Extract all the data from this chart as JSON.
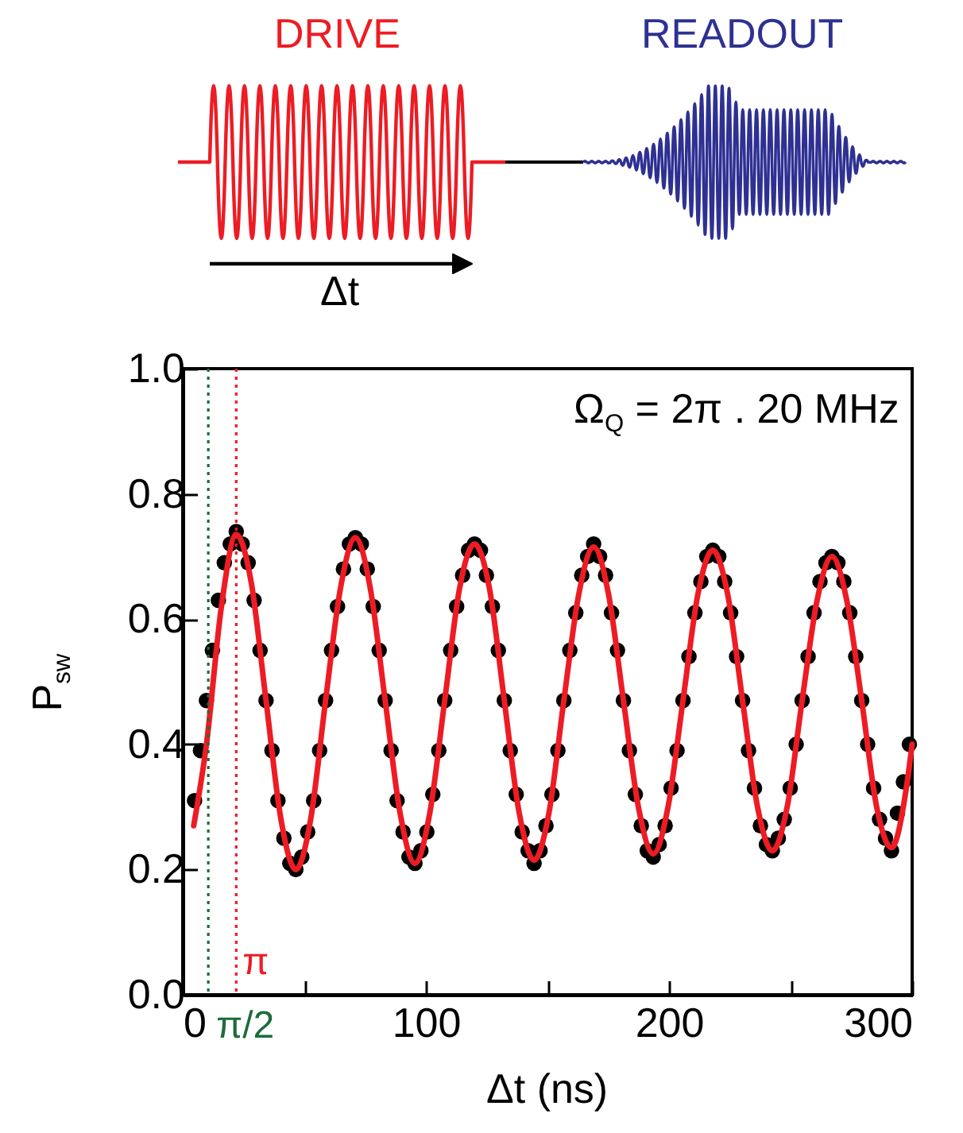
{
  "chart_data": {
    "type": "scatter",
    "xlabel": "Δt (ns)",
    "ylabel": "P$_{sw}$",
    "annotations": [
      "DRIVE",
      "READOUT",
      "Δt",
      "Ω$_{Q}$ = 2π . 20 MHz"
    ],
    "xlim": [
      0,
      300
    ],
    "xticks": [
      0,
      {
        "value": 50,
        "label": null
      },
      100,
      {
        "value": 150,
        "label": null
      },
      200,
      {
        "value": 250,
        "label": null
      },
      300
    ],
    "ylim": [
      0,
      1
    ],
    "yticks": [
      {
        "value": 0,
        "label": "0.0"
      },
      {
        "value": 0.2,
        "label": "0.2"
      },
      {
        "value": 0.4,
        "label": "0.4"
      },
      {
        "value": 0.6,
        "label": "0.6"
      },
      {
        "value": 0.8,
        "label": "0.8"
      },
      {
        "value": 1,
        "label": "1.0"
      }
    ],
    "ref_lines": [
      {
        "axis": "x",
        "value": 10.5,
        "label": "π/2",
        "color": "#1e6b3c",
        "line_style": "dotted"
      },
      {
        "axis": "x",
        "value": 22,
        "label": "π",
        "color": "#ed1c24",
        "line_style": "dotted"
      }
    ],
    "series": [
      {
        "color": "#000000",
        "marker": "circle",
        "x": [
          4.85,
          7.3,
          9.75,
          12.2,
          14.65,
          17.1,
          19.55,
          22,
          24.45,
          26.9,
          29.35,
          31.8,
          34.25,
          36.7,
          39.15,
          41.6,
          44.05,
          46.5,
          48.95,
          51.4,
          53.85,
          56.3,
          58.75,
          61.2,
          63.65,
          66.1,
          68.55,
          71,
          73.45,
          75.9,
          78.35,
          80.8,
          83.25,
          85.7,
          88.15,
          90.6,
          93.05,
          95.5,
          97.95,
          100.4,
          102.85,
          105.3,
          107.75,
          110.2,
          112.65,
          115.1,
          117.55,
          120,
          122.45,
          124.9,
          127.35,
          129.8,
          132.25,
          134.7,
          137.15,
          139.6,
          142.05,
          144.5,
          146.95,
          149.4,
          151.85,
          154.3,
          156.75,
          159.2,
          161.65,
          164.1,
          166.55,
          169,
          171.45,
          173.9,
          176.35,
          178.8,
          181.25,
          183.7,
          186.15,
          188.6,
          191.05,
          193.5,
          195.95,
          198.4,
          200.85,
          203.3,
          205.75,
          208.2,
          210.65,
          213.1,
          215.55,
          218,
          220.45,
          222.9,
          225.35,
          227.8,
          230.25,
          232.7,
          235.15,
          237.6,
          240.05,
          242.5,
          244.95,
          247.4,
          249.85,
          252.3,
          254.75,
          257.2,
          259.65,
          262.1,
          264.55,
          267,
          269.45,
          271.9,
          274.35,
          276.8,
          279.25,
          281.7,
          284.15,
          286.6,
          289.05,
          291.5,
          293.95,
          296.4,
          298.85
        ],
        "values": [
          0.31,
          0.39,
          0.47,
          0.55,
          0.63,
          0.69,
          0.72,
          0.74,
          0.72,
          0.69,
          0.63,
          0.55,
          0.47,
          0.39,
          0.31,
          0.25,
          0.21,
          0.2,
          0.22,
          0.26,
          0.31,
          0.39,
          0.47,
          0.55,
          0.62,
          0.68,
          0.72,
          0.73,
          0.72,
          0.68,
          0.62,
          0.55,
          0.47,
          0.39,
          0.31,
          0.26,
          0.22,
          0.21,
          0.23,
          0.26,
          0.32,
          0.39,
          0.47,
          0.55,
          0.62,
          0.67,
          0.71,
          0.72,
          0.71,
          0.67,
          0.62,
          0.55,
          0.47,
          0.39,
          0.32,
          0.26,
          0.23,
          0.21,
          0.23,
          0.27,
          0.32,
          0.39,
          0.47,
          0.55,
          0.61,
          0.67,
          0.7,
          0.72,
          0.7,
          0.67,
          0.61,
          0.55,
          0.47,
          0.39,
          0.32,
          0.27,
          0.23,
          0.22,
          0.24,
          0.27,
          0.33,
          0.39,
          0.47,
          0.54,
          0.61,
          0.66,
          0.7,
          0.71,
          0.7,
          0.66,
          0.61,
          0.54,
          0.47,
          0.39,
          0.33,
          0.27,
          0.24,
          0.23,
          0.25,
          0.28,
          0.33,
          0.4,
          0.47,
          0.54,
          0.61,
          0.66,
          0.69,
          0.7,
          0.69,
          0.66,
          0.61,
          0.54,
          0.47,
          0.4,
          0.33,
          0.28,
          0.25,
          0.23,
          0.29,
          0.34,
          0.4
        ]
      },
      {
        "type": "line",
        "color": "#ed1c24",
        "x": [
          4.5,
          9.75,
          15.9,
          22,
          28.1,
          34.25,
          40.4,
          46.5,
          52.6,
          58.75,
          64.9,
          71,
          77.1,
          83.25,
          89.4,
          95.5,
          101.6,
          107.75,
          113.9,
          120,
          126.1,
          132.25,
          138.4,
          144.5,
          150.6,
          156.75,
          162.9,
          169,
          175.1,
          181.25,
          187.4,
          193.5,
          199.6,
          205.75,
          211.9,
          218,
          224.1,
          230.25,
          236.4,
          242.5,
          248.6,
          254.75,
          260.9,
          267,
          273.1,
          279.25,
          285.4,
          291.5,
          297.6,
          300
        ],
        "values": [
          0.27,
          0.4,
          0.62,
          0.735,
          0.66,
          0.47,
          0.28,
          0.2,
          0.28,
          0.47,
          0.65,
          0.73,
          0.65,
          0.47,
          0.29,
          0.21,
          0.29,
          0.47,
          0.65,
          0.72,
          0.65,
          0.47,
          0.29,
          0.215,
          0.29,
          0.47,
          0.64,
          0.715,
          0.64,
          0.47,
          0.3,
          0.225,
          0.3,
          0.47,
          0.64,
          0.71,
          0.64,
          0.47,
          0.3,
          0.23,
          0.3,
          0.47,
          0.63,
          0.7,
          0.63,
          0.47,
          0.3,
          0.235,
          0.33,
          0.4
        ]
      }
    ]
  }
}
